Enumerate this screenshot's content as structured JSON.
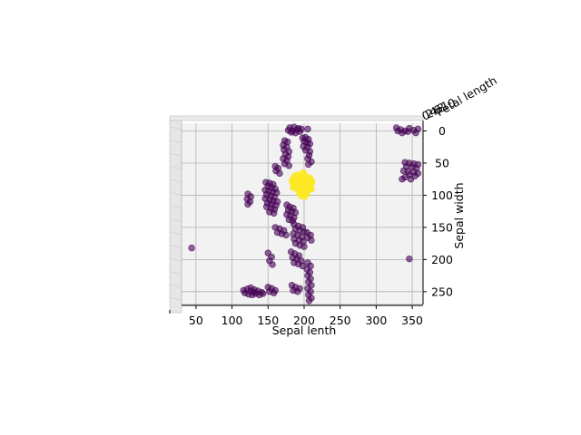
{
  "chart_data": {
    "type": "scatter",
    "projection": "3d",
    "view": "top-down",
    "xlabel": "Sepal lenth",
    "ylabel": "Sepal width",
    "zlabel": "Petal length",
    "xlim": [
      30,
      365
    ],
    "ylim": [
      -12,
      270
    ],
    "xticks": [
      50,
      100,
      150,
      200,
      250,
      300,
      350
    ],
    "yticks": [
      0,
      50,
      100,
      150,
      200,
      250
    ],
    "grid": true,
    "legend": "none",
    "pane_color": "#f2f2f2",
    "series": [
      {
        "color": "#440154",
        "alpha": 0.6,
        "points": [
          [
            180,
            -5
          ],
          [
            186,
            -6
          ],
          [
            192,
            -4
          ],
          [
            178,
            -1
          ],
          [
            184,
            0
          ],
          [
            190,
            -2
          ],
          [
            196,
            -3
          ],
          [
            182,
            2
          ],
          [
            188,
            3
          ],
          [
            194,
            1
          ],
          [
            205,
            -3
          ],
          [
            328,
            -5
          ],
          [
            334,
            -2
          ],
          [
            340,
            0
          ],
          [
            346,
            -4
          ],
          [
            352,
            -1
          ],
          [
            358,
            -3
          ],
          [
            336,
            3
          ],
          [
            344,
            1
          ],
          [
            330,
            0
          ],
          [
            355,
            3
          ],
          [
            198,
            11
          ],
          [
            202,
            10
          ],
          [
            206,
            13
          ],
          [
            200,
            16
          ],
          [
            204,
            18
          ],
          [
            208,
            20
          ],
          [
            199,
            24
          ],
          [
            205,
            25
          ],
          [
            202,
            30
          ],
          [
            208,
            32
          ],
          [
            173,
            15
          ],
          [
            177,
            17
          ],
          [
            171,
            22
          ],
          [
            176,
            25
          ],
          [
            172,
            29
          ],
          [
            179,
            32
          ],
          [
            174,
            36
          ],
          [
            178,
            40
          ],
          [
            171,
            43
          ],
          [
            176,
            46
          ],
          [
            173,
            51
          ],
          [
            179,
            54
          ],
          [
            207,
            38
          ],
          [
            205,
            43
          ],
          [
            210,
            48
          ],
          [
            206,
            52
          ],
          [
            340,
            49
          ],
          [
            346,
            50
          ],
          [
            352,
            51
          ],
          [
            358,
            52
          ],
          [
            342,
            55
          ],
          [
            350,
            56
          ],
          [
            356,
            58
          ],
          [
            338,
            62
          ],
          [
            344,
            63
          ],
          [
            352,
            64
          ],
          [
            358,
            66
          ],
          [
            346,
            68
          ],
          [
            354,
            70
          ],
          [
            340,
            72
          ],
          [
            336,
            75
          ],
          [
            348,
            75
          ],
          [
            160,
            55
          ],
          [
            164,
            58
          ],
          [
            161,
            62
          ],
          [
            166,
            66
          ],
          [
            147,
            80
          ],
          [
            152,
            81
          ],
          [
            157,
            83
          ],
          [
            150,
            86
          ],
          [
            155,
            88
          ],
          [
            160,
            90
          ],
          [
            146,
            92
          ],
          [
            151,
            94
          ],
          [
            156,
            95
          ],
          [
            162,
            96
          ],
          [
            148,
            99
          ],
          [
            154,
            101
          ],
          [
            159,
            103
          ],
          [
            146,
            105
          ],
          [
            152,
            107
          ],
          [
            157,
            109
          ],
          [
            163,
            110
          ],
          [
            149,
            112
          ],
          [
            155,
            114
          ],
          [
            161,
            116
          ],
          [
            148,
            118
          ],
          [
            154,
            120
          ],
          [
            159,
            122
          ],
          [
            152,
            126
          ],
          [
            158,
            128
          ],
          [
            122,
            98
          ],
          [
            126,
            102
          ],
          [
            121,
            106
          ],
          [
            125,
            110
          ],
          [
            122,
            114
          ],
          [
            176,
            115
          ],
          [
            180,
            118
          ],
          [
            185,
            120
          ],
          [
            178,
            123
          ],
          [
            183,
            125
          ],
          [
            188,
            127
          ],
          [
            176,
            130
          ],
          [
            181,
            132
          ],
          [
            186,
            135
          ],
          [
            179,
            138
          ],
          [
            184,
            140
          ],
          [
            160,
            150
          ],
          [
            166,
            152
          ],
          [
            172,
            155
          ],
          [
            163,
            158
          ],
          [
            169,
            160
          ],
          [
            175,
            162
          ],
          [
            186,
            145
          ],
          [
            192,
            148
          ],
          [
            198,
            150
          ],
          [
            188,
            152
          ],
          [
            194,
            155
          ],
          [
            200,
            157
          ],
          [
            185,
            160
          ],
          [
            191,
            162
          ],
          [
            197,
            165
          ],
          [
            186,
            168
          ],
          [
            193,
            170
          ],
          [
            199,
            172
          ],
          [
            188,
            175
          ],
          [
            194,
            178
          ],
          [
            200,
            180
          ],
          [
            204,
            158
          ],
          [
            209,
            162
          ],
          [
            205,
            166
          ],
          [
            210,
            170
          ],
          [
            182,
            188
          ],
          [
            187,
            191
          ],
          [
            193,
            194
          ],
          [
            184,
            197
          ],
          [
            190,
            199
          ],
          [
            196,
            202
          ],
          [
            186,
            205
          ],
          [
            192,
            207
          ],
          [
            198,
            210
          ],
          [
            150,
            190
          ],
          [
            155,
            196
          ],
          [
            152,
            202
          ],
          [
            156,
            208
          ],
          [
            205,
            205
          ],
          [
            209,
            210
          ],
          [
            204,
            215
          ],
          [
            208,
            220
          ],
          [
            205,
            225
          ],
          [
            209,
            230
          ],
          [
            206,
            235
          ],
          [
            210,
            240
          ],
          [
            205,
            245
          ],
          [
            209,
            250
          ],
          [
            206,
            255
          ],
          [
            210,
            260
          ],
          [
            207,
            264
          ],
          [
            116,
            248
          ],
          [
            121,
            246
          ],
          [
            126,
            244
          ],
          [
            131,
            247
          ],
          [
            136,
            249
          ],
          [
            141,
            251
          ],
          [
            118,
            252
          ],
          [
            123,
            254
          ],
          [
            128,
            255
          ],
          [
            133,
            253
          ],
          [
            138,
            255
          ],
          [
            143,
            253
          ],
          [
            126,
            249
          ],
          [
            131,
            251
          ],
          [
            150,
            243
          ],
          [
            155,
            245
          ],
          [
            160,
            248
          ],
          [
            152,
            250
          ],
          [
            158,
            252
          ],
          [
            183,
            240
          ],
          [
            188,
            243
          ],
          [
            194,
            245
          ],
          [
            185,
            248
          ],
          [
            191,
            250
          ],
          [
            44,
            182
          ],
          [
            346,
            199
          ]
        ]
      },
      {
        "color": "#fde725",
        "alpha": 0.85,
        "points": [
          [
            187,
            70
          ],
          [
            192,
            68
          ],
          [
            198,
            69
          ],
          [
            203,
            71
          ],
          [
            208,
            73
          ],
          [
            185,
            74
          ],
          [
            190,
            73
          ],
          [
            195,
            72
          ],
          [
            200,
            74
          ],
          [
            205,
            76
          ],
          [
            210,
            77
          ],
          [
            183,
            78
          ],
          [
            188,
            77
          ],
          [
            193,
            76
          ],
          [
            198,
            78
          ],
          [
            203,
            80
          ],
          [
            208,
            82
          ],
          [
            211,
            80
          ],
          [
            185,
            82
          ],
          [
            190,
            81
          ],
          [
            195,
            82
          ],
          [
            200,
            84
          ],
          [
            205,
            86
          ],
          [
            209,
            87
          ],
          [
            187,
            86
          ],
          [
            192,
            86
          ],
          [
            197,
            88
          ],
          [
            202,
            90
          ],
          [
            207,
            91
          ],
          [
            190,
            90
          ],
          [
            195,
            92
          ],
          [
            200,
            94
          ],
          [
            204,
            95
          ],
          [
            193,
            96
          ],
          [
            198,
            98
          ],
          [
            203,
            99
          ],
          [
            196,
            101
          ],
          [
            201,
            102
          ],
          [
            185,
            88
          ],
          [
            210,
            90
          ],
          [
            199,
            65
          ]
        ]
      }
    ]
  }
}
